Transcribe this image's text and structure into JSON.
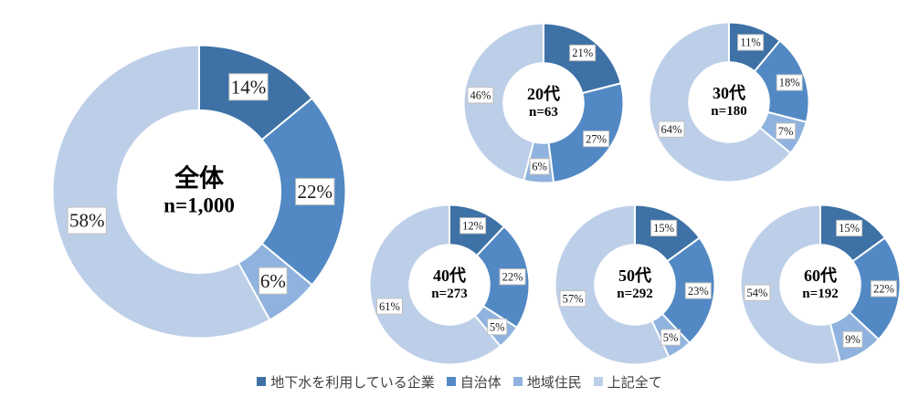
{
  "colors": {
    "series": [
      "#3E71A5",
      "#5289C4",
      "#8FB3DE",
      "#BDCFE8"
    ],
    "segment_border": "#FFFFFF",
    "label_box_fill": "#FFFFFF",
    "label_box_border": "#BFBFBF",
    "label_text": "#1A1A1A",
    "center_text": "#000000",
    "legend_text": "#404040"
  },
  "legend": {
    "position": "bottom",
    "items": [
      {
        "label": "地下水を利用している企業",
        "color": "#3E71A5"
      },
      {
        "label": "自治体",
        "color": "#5289C4"
      },
      {
        "label": "地域住民",
        "color": "#8FB3DE"
      },
      {
        "label": "上記全て",
        "color": "#BDCFE8"
      }
    ]
  },
  "chart_data": [
    {
      "type": "pie",
      "subtype": "donut",
      "center_label": "全体",
      "n_label": "n=1,000",
      "categories": [
        "地下水を利用している企業",
        "自治体",
        "地域住民",
        "上記全て"
      ],
      "values": [
        14,
        22,
        6,
        58
      ],
      "unit": "%",
      "start_angle_deg": 0,
      "direction": "clockwise",
      "legend_position": "bottom"
    },
    {
      "type": "pie",
      "subtype": "donut",
      "center_label": "20代",
      "n_label": "n=63",
      "categories": [
        "地下水を利用している企業",
        "自治体",
        "地域住民",
        "上記全て"
      ],
      "values": [
        21,
        27,
        6,
        46
      ],
      "unit": "%",
      "start_angle_deg": 0,
      "direction": "clockwise",
      "legend_position": "bottom"
    },
    {
      "type": "pie",
      "subtype": "donut",
      "center_label": "30代",
      "n_label": "n=180",
      "categories": [
        "地下水を利用している企業",
        "自治体",
        "地域住民",
        "上記全て"
      ],
      "values": [
        11,
        18,
        7,
        64
      ],
      "unit": "%",
      "start_angle_deg": 0,
      "direction": "clockwise",
      "legend_position": "bottom"
    },
    {
      "type": "pie",
      "subtype": "donut",
      "center_label": "40代",
      "n_label": "n=273",
      "categories": [
        "地下水を利用している企業",
        "自治体",
        "地域住民",
        "上記全て"
      ],
      "values": [
        12,
        22,
        5,
        61
      ],
      "unit": "%",
      "start_angle_deg": 0,
      "direction": "clockwise",
      "legend_position": "bottom"
    },
    {
      "type": "pie",
      "subtype": "donut",
      "center_label": "50代",
      "n_label": "n=292",
      "categories": [
        "地下水を利用している企業",
        "自治体",
        "地域住民",
        "上記全て"
      ],
      "values": [
        15,
        23,
        5,
        57
      ],
      "unit": "%",
      "start_angle_deg": 0,
      "direction": "clockwise",
      "legend_position": "bottom"
    },
    {
      "type": "pie",
      "subtype": "donut",
      "center_label": "60代",
      "n_label": "n=192",
      "categories": [
        "地下水を利用している企業",
        "自治体",
        "地域住民",
        "上記全て"
      ],
      "values": [
        15,
        22,
        9,
        54
      ],
      "unit": "%",
      "start_angle_deg": 0,
      "direction": "clockwise",
      "legend_position": "bottom"
    }
  ]
}
